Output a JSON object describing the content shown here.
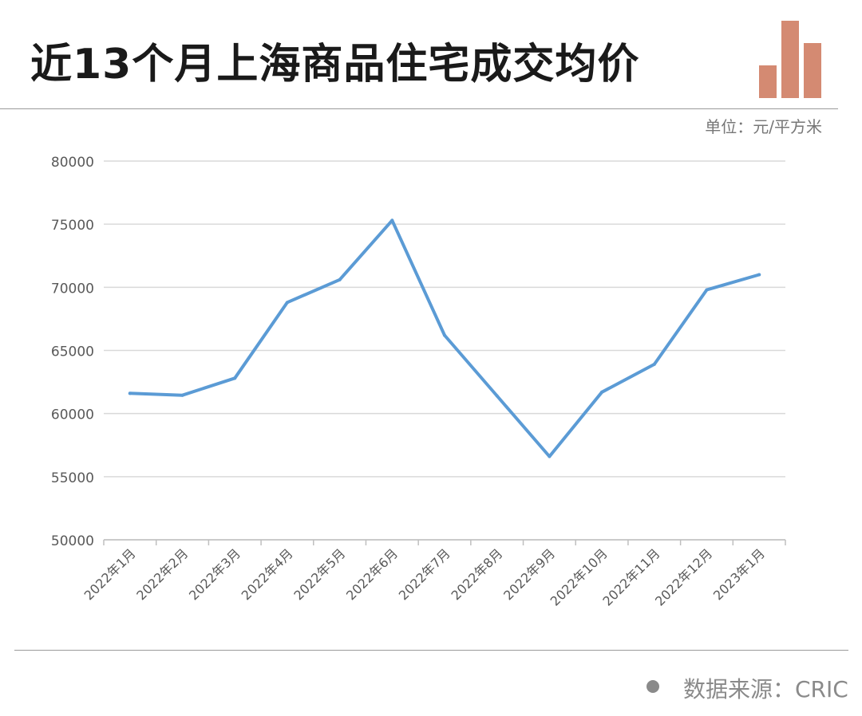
{
  "header": {
    "title": "近13个月上海商品住宅成交均价",
    "logo_icon": "bar-chart-icon",
    "logo_color": "#d48a72"
  },
  "unit_label": "单位：元/平方米",
  "footer": {
    "source_label": "数据来源：CRIC"
  },
  "chart_data": {
    "type": "line",
    "title": "近13个月上海商品住宅成交均价",
    "xlabel": "",
    "ylabel": "",
    "categories": [
      "2022年1月",
      "2022年2月",
      "2022年3月",
      "2022年4月",
      "2022年5月",
      "2022年6月",
      "2022年7月",
      "2022年8月",
      "2022年9月",
      "2022年10月",
      "2022年11月",
      "2022年12月",
      "2023年1月"
    ],
    "series": [
      {
        "values": [
          61600,
          61450,
          62800,
          68800,
          70600,
          75300,
          66200,
          61400,
          56600,
          61700,
          63900,
          69800,
          71000
        ],
        "color": "#5b9bd5"
      }
    ],
    "ylim": [
      50000,
      80000
    ],
    "yticks": [
      50000,
      55000,
      60000,
      65000,
      70000,
      75000,
      80000
    ],
    "grid": true,
    "legend": "none"
  }
}
